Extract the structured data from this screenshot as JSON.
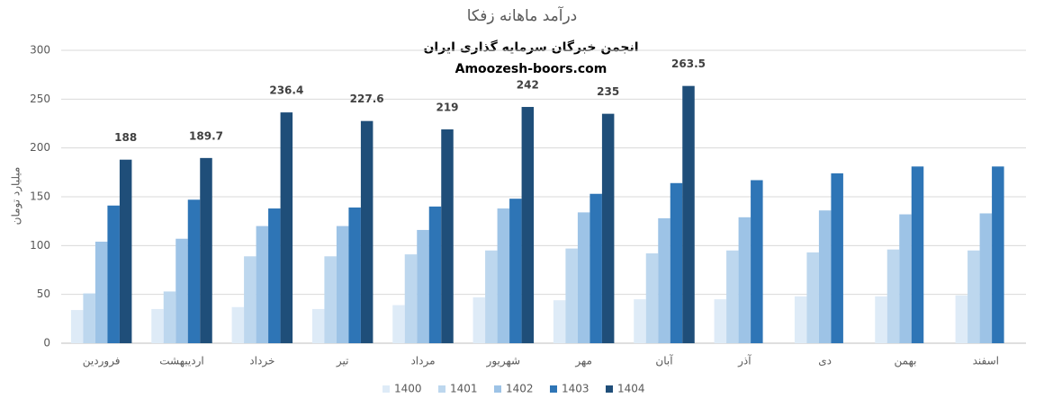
{
  "chart_data": {
    "type": "bar",
    "title": "درآمد ماهانه زفکا",
    "annotations": [
      "انجمن خبرگان سرمایه گذاری ایران",
      "Amoozesh-boors.com"
    ],
    "y_label": "میلیارد تومان",
    "categories": [
      "فروردین",
      "اردیبهشت",
      "خرداد",
      "تیر",
      "مرداد",
      "شهریور",
      "مهر",
      "آبان",
      "آذر",
      "دی",
      "بهمن",
      "اسفند"
    ],
    "series": [
      {
        "name": "1400",
        "color": "#deebf7",
        "values": [
          34,
          35,
          37,
          35,
          39,
          47,
          44,
          45,
          45,
          48,
          48,
          49
        ]
      },
      {
        "name": "1401",
        "color": "#bdd7ee",
        "values": [
          51,
          53,
          89,
          89,
          91,
          95,
          97,
          92,
          95,
          93,
          96,
          95
        ]
      },
      {
        "name": "1402",
        "color": "#9dc3e6",
        "values": [
          104,
          107,
          120,
          120,
          116,
          138,
          134,
          128,
          129,
          136,
          132,
          133
        ]
      },
      {
        "name": "1403",
        "color": "#2e75b6",
        "values": [
          141,
          147,
          138,
          139,
          140,
          148,
          153,
          164,
          167,
          174,
          181,
          181
        ]
      },
      {
        "name": "1404",
        "color": "#1f4e79",
        "values": [
          188,
          189.7,
          236.4,
          227.6,
          219,
          242,
          235,
          263.5,
          null,
          null,
          null,
          null
        ],
        "data_labels": true
      }
    ],
    "ylim": [
      0,
      300
    ],
    "yticks": [
      0,
      50,
      100,
      150,
      200,
      250,
      300
    ],
    "grid": true,
    "legend": "bottom"
  }
}
